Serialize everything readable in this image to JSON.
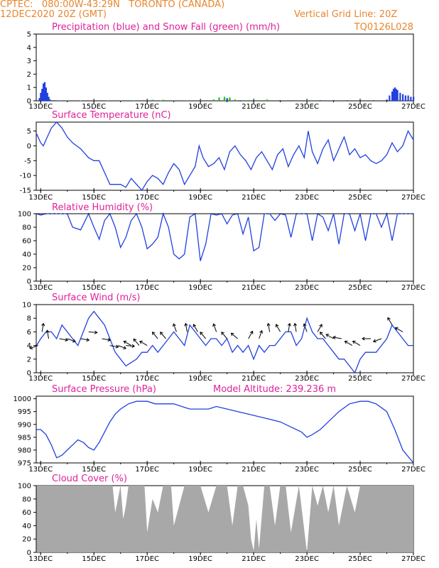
{
  "header": {
    "line1": "CPTEC:   080:00W-43:29N   TORONTO (CANADA)",
    "line2": "12DEC2020 20Z (GMT)",
    "grid_note": "Vertical Grid Line: 20Z",
    "code": "TQ0126L028"
  },
  "colors": {
    "header": "#e8862e",
    "title": "#e0209a",
    "line": "#2040e0",
    "snow": "#20c020",
    "cloud": "#a8a8a8"
  },
  "chart_data": [
    {
      "id": "precip",
      "type": "bar",
      "title": "Precipitation (blue) and Snow Fall (green) (mm/h)",
      "x_ticks": [
        "13DEC",
        "15DEC",
        "17DEC",
        "19DEC",
        "21DEC",
        "23DEC",
        "25DEC",
        "27DEC"
      ],
      "xlim": [
        12.833,
        27.0
      ],
      "ylim": [
        0,
        5
      ],
      "y_ticks": [
        0,
        1,
        2,
        3,
        4,
        5
      ],
      "series": [
        {
          "color": "blue",
          "x": [
            12.95,
            13.0,
            13.05,
            13.1,
            13.15,
            13.2,
            13.25,
            13.3,
            13.35,
            13.5,
            13.7,
            14.0,
            14.5,
            15.0,
            15.5,
            16.0,
            16.5,
            17.0,
            17.5,
            18.0,
            18.5,
            19.0,
            19.5,
            19.9,
            20.0,
            20.1,
            20.5,
            21.0,
            21.5,
            22.0,
            22.5,
            23.0,
            23.5,
            24.0,
            24.5,
            25.0,
            25.5,
            26.0,
            26.1,
            26.2,
            26.25,
            26.3,
            26.35,
            26.4,
            26.5,
            26.6,
            26.7,
            26.8,
            26.9,
            27.0
          ],
          "y": [
            0.2,
            0.6,
            0.9,
            1.3,
            1.4,
            1.0,
            0.6,
            0.3,
            0.1,
            0.05,
            0.03,
            0.02,
            0.02,
            0.02,
            0.02,
            0.02,
            0.02,
            0.02,
            0.02,
            0.02,
            0.02,
            0.02,
            0.05,
            0.15,
            0.2,
            0.15,
            0.05,
            0.05,
            0.05,
            0.05,
            0.05,
            0.05,
            0.05,
            0.05,
            0.05,
            0.05,
            0.05,
            0.1,
            0.4,
            0.7,
            0.9,
            1.0,
            0.9,
            0.8,
            0.6,
            0.5,
            0.4,
            0.4,
            0.3,
            0.3
          ]
        },
        {
          "color": "green",
          "x": [
            15.6,
            15.8,
            16.4,
            17.2,
            17.6,
            18.4,
            19.5,
            19.7,
            19.9,
            20.1,
            20.3,
            20.7,
            20.9,
            21.3,
            21.5,
            22.1,
            22.5,
            23.0,
            23.2
          ],
          "y": [
            0.05,
            0.05,
            0.05,
            0.08,
            0.08,
            0.05,
            0.1,
            0.25,
            0.3,
            0.25,
            0.1,
            0.05,
            0.05,
            0.05,
            0.1,
            0.05,
            0.05,
            0.05,
            0.05
          ]
        }
      ]
    },
    {
      "id": "temp",
      "type": "line",
      "title": "Surface Temperature (nC)",
      "x_ticks": [
        "13DEC",
        "15DEC",
        "17DEC",
        "19DEC",
        "21DEC",
        "23DEC",
        "25DEC",
        "27DEC"
      ],
      "xlim": [
        12.833,
        27.0
      ],
      "ylim": [
        -15,
        8
      ],
      "y_ticks": [
        -15,
        -10,
        -5,
        0,
        5
      ],
      "x": [
        12.85,
        13.0,
        13.1,
        13.25,
        13.4,
        13.6,
        13.8,
        14.0,
        14.2,
        14.5,
        14.8,
        15.0,
        15.2,
        15.4,
        15.6,
        15.8,
        16.0,
        16.2,
        16.4,
        16.6,
        16.8,
        17.0,
        17.2,
        17.4,
        17.6,
        17.8,
        18.0,
        18.2,
        18.4,
        18.6,
        18.8,
        18.95,
        19.1,
        19.3,
        19.5,
        19.7,
        19.9,
        20.1,
        20.3,
        20.5,
        20.7,
        20.9,
        21.1,
        21.3,
        21.5,
        21.7,
        21.9,
        22.1,
        22.3,
        22.5,
        22.7,
        22.9,
        23.05,
        23.2,
        23.4,
        23.6,
        23.8,
        24.0,
        24.2,
        24.4,
        24.6,
        24.8,
        25.0,
        25.2,
        25.4,
        25.6,
        25.8,
        26.0,
        26.2,
        26.4,
        26.6,
        26.8,
        27.0
      ],
      "y": [
        4,
        1,
        0,
        3,
        6,
        8,
        6,
        3,
        1,
        -1,
        -4,
        -5,
        -5,
        -9,
        -13,
        -13,
        -13,
        -14,
        -11,
        -13,
        -15,
        -12,
        -10,
        -11,
        -13,
        -9,
        -6,
        -8,
        -13,
        -10,
        -7,
        0,
        -4,
        -7,
        -6,
        -4,
        -8,
        -2,
        0,
        -3,
        -5,
        -8,
        -4,
        -2,
        -5,
        -8,
        -3,
        -1,
        -7,
        -3,
        0,
        -4,
        5,
        -2,
        -6,
        -1,
        2,
        -5,
        -1,
        3,
        -3,
        -1,
        -4,
        -3,
        -5,
        -6,
        -5,
        -3,
        1,
        -2,
        0,
        5,
        2
      ],
      "color": "blue"
    },
    {
      "id": "rh",
      "type": "line",
      "title": "Relative Humidity (%)",
      "x_ticks": [
        "13DEC",
        "15DEC",
        "17DEC",
        "19DEC",
        "21DEC",
        "23DEC",
        "25DEC",
        "27DEC"
      ],
      "xlim": [
        12.833,
        27.0
      ],
      "ylim": [
        0,
        100
      ],
      "y_ticks": [
        0,
        20,
        40,
        60,
        80,
        100
      ],
      "x": [
        12.85,
        13.0,
        13.2,
        13.4,
        13.6,
        13.8,
        14.0,
        14.2,
        14.5,
        14.8,
        15.0,
        15.2,
        15.4,
        15.6,
        15.8,
        16.0,
        16.2,
        16.4,
        16.6,
        16.8,
        17.0,
        17.2,
        17.4,
        17.6,
        17.8,
        18.0,
        18.2,
        18.4,
        18.6,
        18.8,
        19.0,
        19.2,
        19.4,
        19.6,
        19.8,
        20.0,
        20.2,
        20.4,
        20.6,
        20.8,
        21.0,
        21.2,
        21.4,
        21.6,
        21.8,
        22.0,
        22.2,
        22.4,
        22.6,
        22.8,
        23.0,
        23.2,
        23.4,
        23.6,
        23.8,
        24.0,
        24.2,
        24.4,
        24.6,
        24.8,
        25.0,
        25.2,
        25.4,
        25.6,
        25.8,
        26.0,
        26.2,
        26.4,
        26.6,
        26.8,
        27.0
      ],
      "y": [
        100,
        98,
        100,
        100,
        100,
        100,
        100,
        80,
        76,
        100,
        80,
        62,
        90,
        100,
        80,
        50,
        65,
        90,
        100,
        80,
        48,
        55,
        65,
        100,
        80,
        40,
        33,
        40,
        95,
        100,
        30,
        55,
        100,
        98,
        100,
        85,
        98,
        100,
        70,
        95,
        45,
        50,
        100,
        100,
        90,
        100,
        98,
        65,
        100,
        100,
        100,
        60,
        100,
        95,
        75,
        100,
        55,
        100,
        100,
        75,
        100,
        60,
        100,
        100,
        80,
        100,
        60,
        100,
        100,
        100,
        100
      ],
      "color": "blue"
    },
    {
      "id": "wind",
      "type": "line",
      "title": "Surface Wind (m/s)",
      "x_ticks": [
        "13DEC",
        "15DEC",
        "17DEC",
        "19DEC",
        "21DEC",
        "23DEC",
        "25DEC",
        "27DEC"
      ],
      "xlim": [
        12.833,
        27.0
      ],
      "ylim": [
        0,
        10
      ],
      "y_ticks": [
        0,
        2,
        4,
        6,
        8,
        10
      ],
      "x": [
        12.85,
        13.0,
        13.2,
        13.4,
        13.6,
        13.8,
        14.0,
        14.2,
        14.4,
        14.6,
        14.8,
        15.0,
        15.2,
        15.4,
        15.6,
        15.8,
        16.0,
        16.2,
        16.4,
        16.6,
        16.8,
        17.0,
        17.2,
        17.4,
        17.6,
        17.8,
        18.0,
        18.2,
        18.4,
        18.6,
        18.8,
        19.0,
        19.2,
        19.4,
        19.6,
        19.8,
        20.0,
        20.2,
        20.4,
        20.6,
        20.8,
        21.0,
        21.2,
        21.4,
        21.6,
        21.8,
        22.0,
        22.2,
        22.4,
        22.6,
        22.8,
        23.0,
        23.2,
        23.4,
        23.6,
        23.8,
        24.0,
        24.2,
        24.4,
        24.6,
        24.8,
        25.0,
        25.2,
        25.4,
        25.6,
        25.8,
        26.0,
        26.2,
        26.4,
        26.6,
        26.8,
        27.0
      ],
      "y": [
        4,
        5,
        6,
        6,
        5,
        7,
        6,
        5,
        4,
        6,
        8,
        9,
        8,
        7,
        5,
        3,
        2,
        1,
        1.5,
        2,
        3,
        3,
        4,
        3,
        4,
        5,
        6,
        5,
        4,
        7,
        6,
        5,
        4,
        5,
        5,
        4,
        5,
        3,
        4,
        3,
        4,
        2,
        4,
        3,
        4,
        4,
        5,
        6,
        6,
        4,
        5,
        8,
        6,
        5,
        5,
        4,
        3,
        2,
        2,
        1,
        0,
        2,
        3,
        3,
        3,
        4,
        5,
        7,
        6,
        5,
        4,
        4
      ],
      "color": "blue"
    },
    {
      "id": "pressure",
      "type": "line",
      "title": "Surface Pressure (hPa)",
      "annotation": "Model Altitude: 239.236 m",
      "x_ticks": [
        "13DEC",
        "15DEC",
        "17DEC",
        "19DEC",
        "21DEC",
        "23DEC",
        "25DEC",
        "27DEC"
      ],
      "xlim": [
        12.833,
        27.0
      ],
      "ylim": [
        975,
        1001
      ],
      "y_ticks": [
        975,
        980,
        985,
        990,
        995,
        1000
      ],
      "x": [
        12.85,
        13.0,
        13.2,
        13.4,
        13.6,
        13.8,
        14.0,
        14.2,
        14.4,
        14.6,
        14.8,
        15.0,
        15.2,
        15.4,
        15.6,
        15.8,
        16.0,
        16.3,
        16.6,
        17.0,
        17.3,
        17.6,
        18.0,
        18.3,
        18.6,
        19.0,
        19.3,
        19.6,
        20.0,
        20.4,
        20.8,
        21.2,
        21.6,
        22.0,
        22.4,
        22.8,
        23.0,
        23.2,
        23.5,
        23.8,
        24.2,
        24.6,
        25.0,
        25.3,
        25.6,
        26.0,
        26.3,
        26.6,
        27.0
      ],
      "y": [
        988,
        988,
        986,
        982,
        977,
        978,
        980,
        982,
        984,
        983,
        981,
        980,
        983,
        987,
        991,
        994,
        996,
        998,
        999,
        999,
        998,
        998,
        998,
        997,
        996,
        996,
        996,
        997,
        996,
        995,
        994,
        993,
        992,
        991,
        989,
        987,
        985,
        986,
        988,
        991,
        995,
        998,
        999,
        999,
        998,
        995,
        988,
        980,
        975
      ],
      "color": "blue"
    },
    {
      "id": "cloud",
      "type": "area",
      "title": "Cloud Cover (%)",
      "x_ticks": [
        "13DEC",
        "15DEC",
        "17DEC",
        "19DEC",
        "21DEC",
        "23DEC",
        "25DEC",
        "27DEC"
      ],
      "xlim": [
        12.833,
        27.0
      ],
      "ylim": [
        0,
        100
      ],
      "y_ticks": [
        0,
        20,
        40,
        60,
        80,
        100
      ],
      "x": [
        12.85,
        13.5,
        14.0,
        14.5,
        15.0,
        15.5,
        15.7,
        15.8,
        15.9,
        16.0,
        16.1,
        16.2,
        16.3,
        16.6,
        16.9,
        17.0,
        17.2,
        17.4,
        17.6,
        17.9,
        18.0,
        18.4,
        18.6,
        19.0,
        19.3,
        19.6,
        20.0,
        20.2,
        20.4,
        20.6,
        20.8,
        20.9,
        21.0,
        21.1,
        21.2,
        21.4,
        21.6,
        21.8,
        22.0,
        22.2,
        22.4,
        22.7,
        23.0,
        23.2,
        23.4,
        23.6,
        23.8,
        24.0,
        24.2,
        24.5,
        24.8,
        25.0,
        25.5,
        26.0,
        26.5,
        27.0
      ],
      "y": [
        100,
        100,
        100,
        100,
        100,
        100,
        100,
        60,
        80,
        100,
        50,
        70,
        100,
        100,
        100,
        30,
        80,
        60,
        100,
        100,
        40,
        100,
        100,
        100,
        60,
        100,
        100,
        40,
        100,
        100,
        70,
        20,
        2,
        50,
        5,
        100,
        100,
        40,
        100,
        100,
        30,
        100,
        0,
        100,
        70,
        100,
        60,
        100,
        40,
        100,
        60,
        100,
        100,
        100,
        100,
        100
      ],
      "color": "gray"
    }
  ],
  "wind_arrows": [
    {
      "x": 12.9,
      "dir": 250,
      "v": 4
    },
    {
      "x": 13.05,
      "dir": 10,
      "v": 6
    },
    {
      "x": 13.3,
      "dir": 350,
      "v": 5
    },
    {
      "x": 13.7,
      "dir": 100,
      "v": 5
    },
    {
      "x": 14.0,
      "dir": 110,
      "v": 5
    },
    {
      "x": 14.5,
      "dir": 100,
      "v": 5
    },
    {
      "x": 14.8,
      "dir": 95,
      "v": 6
    },
    {
      "x": 15.3,
      "dir": 100,
      "v": 5
    },
    {
      "x": 15.6,
      "dir": 100,
      "v": 4
    },
    {
      "x": 15.9,
      "dir": 110,
      "v": 4
    },
    {
      "x": 16.2,
      "dir": 95,
      "v": 4
    },
    {
      "x": 16.4,
      "dir": 300,
      "v": 4
    },
    {
      "x": 16.7,
      "dir": 320,
      "v": 4
    },
    {
      "x": 17.0,
      "dir": 300,
      "v": 4
    },
    {
      "x": 17.4,
      "dir": 320,
      "v": 5
    },
    {
      "x": 17.7,
      "dir": 320,
      "v": 5
    },
    {
      "x": 18.1,
      "dir": 340,
      "v": 6
    },
    {
      "x": 18.5,
      "dir": 350,
      "v": 6
    },
    {
      "x": 18.9,
      "dir": 330,
      "v": 6
    },
    {
      "x": 19.2,
      "dir": 320,
      "v": 5
    },
    {
      "x": 19.6,
      "dir": 340,
      "v": 6
    },
    {
      "x": 20.0,
      "dir": 320,
      "v": 5
    },
    {
      "x": 20.4,
      "dir": 310,
      "v": 5
    },
    {
      "x": 20.8,
      "dir": 30,
      "v": 5
    },
    {
      "x": 21.2,
      "dir": 20,
      "v": 5
    },
    {
      "x": 21.6,
      "dir": 350,
      "v": 6
    },
    {
      "x": 22.0,
      "dir": 330,
      "v": 6
    },
    {
      "x": 22.3,
      "dir": 10,
      "v": 6
    },
    {
      "x": 22.6,
      "dir": 350,
      "v": 6
    },
    {
      "x": 23.0,
      "dir": 340,
      "v": 6
    },
    {
      "x": 23.4,
      "dir": 30,
      "v": 6
    },
    {
      "x": 23.7,
      "dir": 320,
      "v": 5
    },
    {
      "x": 24.0,
      "dir": 300,
      "v": 5
    },
    {
      "x": 24.3,
      "dir": 280,
      "v": 5
    },
    {
      "x": 24.7,
      "dir": 300,
      "v": 4
    },
    {
      "x": 25.0,
      "dir": 300,
      "v": 4
    },
    {
      "x": 25.4,
      "dir": 270,
      "v": 5
    },
    {
      "x": 25.8,
      "dir": 250,
      "v": 5
    },
    {
      "x": 26.2,
      "dir": 330,
      "v": 7
    },
    {
      "x": 26.6,
      "dir": 300,
      "v": 6
    }
  ]
}
